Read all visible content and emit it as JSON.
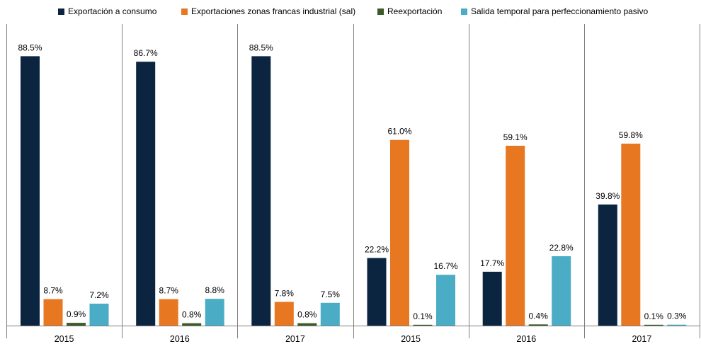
{
  "chart_data": {
    "type": "bar",
    "categories": [
      "2015",
      "2016",
      "2017",
      "2015",
      "2016",
      "2017"
    ],
    "series": [
      {
        "name": "Exportación a consumo",
        "color": "#0b2541",
        "values": [
          88.5,
          86.7,
          88.5,
          22.2,
          17.7,
          39.8
        ],
        "labels": [
          "88.5%",
          "86.7%",
          "88.5%",
          "22.2%",
          "17.7%",
          "39.8%"
        ]
      },
      {
        "name": "Exportaciones zonas francas industrial (sal)",
        "color": "#e87722",
        "values": [
          8.7,
          8.7,
          7.8,
          61.0,
          59.1,
          59.8
        ],
        "labels": [
          "8.7%",
          "8.7%",
          "7.8%",
          "61.0%",
          "59.1%",
          "59.8%"
        ]
      },
      {
        "name": "Reexportación",
        "color": "#3d5a2a",
        "values": [
          0.9,
          0.8,
          0.8,
          0.1,
          0.4,
          0.1
        ],
        "labels": [
          "0.9%",
          "0.8%",
          "0.8%",
          "0.1%",
          "0.4%",
          "0.1%"
        ]
      },
      {
        "name": "Salida temporal para perfeccionamiento pasivo",
        "color": "#4bacc6",
        "values": [
          7.2,
          8.8,
          7.5,
          16.7,
          22.8,
          0.3
        ],
        "labels": [
          "7.2%",
          "8.8%",
          "7.5%",
          "16.7%",
          "22.8%",
          "0.3%"
        ]
      }
    ],
    "ylim": [
      0,
      100
    ],
    "grid": false,
    "legend_position": "top"
  }
}
